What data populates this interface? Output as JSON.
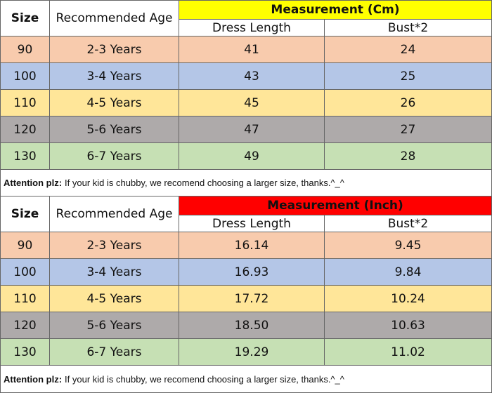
{
  "tables": [
    {
      "headers": {
        "size": "Size",
        "age": "Recommended Age",
        "measurement": "Measurement (Cm)",
        "sub": [
          "Dress Length",
          "Bust*2"
        ]
      },
      "rows": [
        [
          "90",
          "2-3 Years",
          "41",
          "24"
        ],
        [
          "100",
          "3-4 Years",
          "43",
          "25"
        ],
        [
          "110",
          "4-5 Years",
          "45",
          "26"
        ],
        [
          "120",
          "5-6 Years",
          "47",
          "27"
        ],
        [
          "130",
          "6-7 Years",
          "49",
          "28"
        ]
      ],
      "note": {
        "label": "Attention plz:",
        "text": "If your kid is chubby, we recomend choosing a larger size, thanks.^_^"
      }
    },
    {
      "headers": {
        "size": "Size",
        "age": "Recommended Age",
        "measurement": "Measurement (Inch)",
        "sub": [
          "Dress Length",
          "Bust*2"
        ]
      },
      "rows": [
        [
          "90",
          "2-3 Years",
          "16.14",
          "9.45"
        ],
        [
          "100",
          "3-4 Years",
          "16.93",
          "9.84"
        ],
        [
          "110",
          "4-5 Years",
          "17.72",
          "10.24"
        ],
        [
          "120",
          "5-6 Years",
          "18.50",
          "10.63"
        ],
        [
          "130",
          "6-7 Years",
          "19.29",
          "11.02"
        ]
      ],
      "note": {
        "label": "Attention plz:",
        "text": "If your kid is chubby, we recomend choosing a larger size, thanks.^_^"
      }
    }
  ]
}
